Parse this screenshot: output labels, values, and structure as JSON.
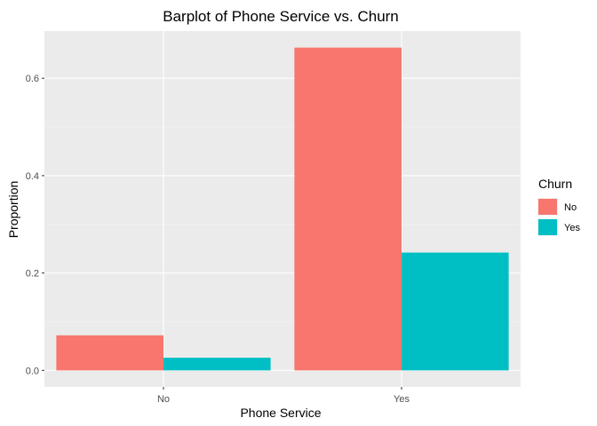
{
  "chart_data": {
    "type": "bar",
    "title": "Barplot of Phone Service vs. Churn",
    "xlabel": "Phone Service",
    "ylabel": "Proportion",
    "categories": [
      "No",
      "Yes"
    ],
    "series": [
      {
        "name": "No",
        "color": "#F8766D",
        "values": [
          0.072,
          0.663
        ]
      },
      {
        "name": "Yes",
        "color": "#00BFC4",
        "values": [
          0.026,
          0.242
        ]
      }
    ],
    "ylim": [
      -0.034,
      0.697
    ],
    "yticks": [
      0.0,
      0.2,
      0.4,
      0.6
    ],
    "ytick_labels": [
      "0.0",
      "0.2",
      "0.4",
      "0.6"
    ],
    "legend_title": "Churn",
    "legend_position": "right",
    "grid": true,
    "panel_background": "#EBEBEB"
  }
}
